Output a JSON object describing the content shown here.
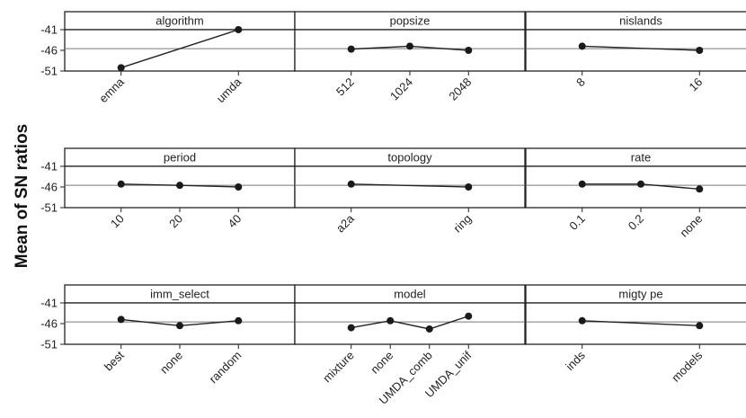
{
  "chart_data": {
    "type": "line",
    "ylabel": "Mean of SN ratios",
    "ylim": [
      -51,
      -41
    ],
    "yticks": [
      -41,
      -46,
      -51
    ],
    "reference_line": -45.6,
    "panels": [
      {
        "title": "algorithm",
        "categories": [
          "emna",
          "umda"
        ],
        "values": [
          -50.2,
          -41.0
        ]
      },
      {
        "title": "popsize",
        "categories": [
          "512",
          "1024",
          "2048"
        ],
        "values": [
          -45.7,
          -45.0,
          -46.0
        ]
      },
      {
        "title": "nislands",
        "categories": [
          "8",
          "16"
        ],
        "values": [
          -45.0,
          -46.0
        ]
      },
      {
        "title": "period",
        "categories": [
          "10",
          "20",
          "40"
        ],
        "values": [
          -45.3,
          -45.6,
          -46.0
        ]
      },
      {
        "title": "topology",
        "categories": [
          "a2a",
          "ring"
        ],
        "values": [
          -45.3,
          -46.0
        ]
      },
      {
        "title": "rate",
        "categories": [
          "0.1",
          "0.2",
          "none"
        ],
        "values": [
          -45.3,
          -45.3,
          -46.5
        ]
      },
      {
        "title": "imm_select",
        "categories": [
          "best",
          "none",
          "random"
        ],
        "values": [
          -45.0,
          -46.5,
          -45.3
        ]
      },
      {
        "title": "model",
        "categories": [
          "mixture",
          "none",
          "UMDA_comb",
          "UMDA_unif"
        ],
        "values": [
          -47.0,
          -45.3,
          -47.3,
          -44.2
        ]
      },
      {
        "title": "migty pe",
        "categories": [
          "inds",
          "models"
        ],
        "values": [
          -45.3,
          -46.5
        ]
      }
    ]
  }
}
